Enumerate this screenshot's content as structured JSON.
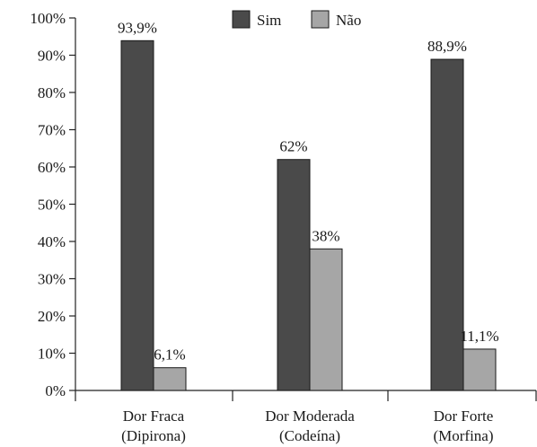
{
  "chart_data": {
    "type": "bar",
    "categories": [
      [
        "Dor Fraca",
        "(Dipirona)"
      ],
      [
        "Dor Moderada",
        "(Codeína)"
      ],
      [
        "Dor Forte",
        "(Morfina)"
      ]
    ],
    "series": [
      {
        "name": "Sim",
        "values": [
          93.9,
          62,
          88.9
        ],
        "labels": [
          "93,9%",
          "62%",
          "88,9%"
        ],
        "color": "#4a4a4a"
      },
      {
        "name": "Não",
        "values": [
          6.1,
          38,
          11.1
        ],
        "labels": [
          "6,1%",
          "38%",
          "11,1%"
        ],
        "color": "#a6a6a6"
      }
    ],
    "yticks": [
      "0%",
      "10%",
      "20%",
      "30%",
      "40%",
      "50%",
      "60%",
      "70%",
      "80%",
      "90%",
      "100%"
    ],
    "ylim": [
      0,
      100
    ],
    "title": "",
    "xlabel": "",
    "ylabel": "",
    "legend_position": "top-center",
    "grid": false
  }
}
